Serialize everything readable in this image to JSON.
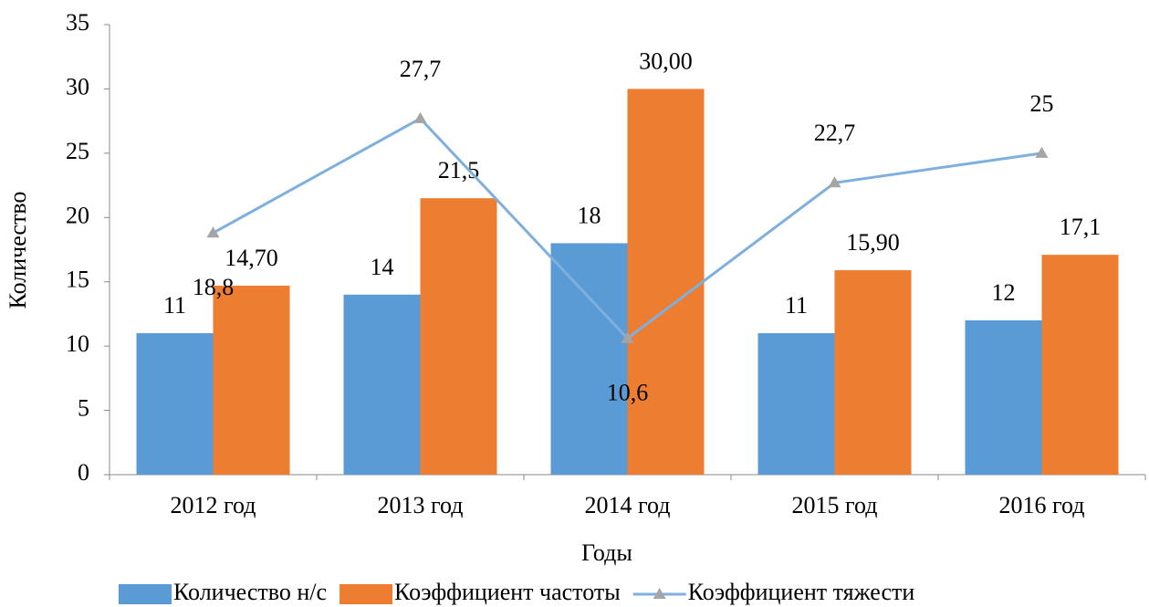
{
  "chart_data": {
    "type": "bar",
    "x_label": "Годы",
    "y_label": "Количество",
    "categories": [
      "2012 год",
      "2013 год",
      "2014 год",
      "2015 год",
      "2016 год"
    ],
    "series": [
      {
        "name": "Количество н/с",
        "type": "bar",
        "color": "#5b9bd5",
        "values": [
          11,
          14,
          18,
          11,
          12
        ]
      },
      {
        "name": "Коэффициент частоты",
        "type": "bar",
        "color": "#ed7d31",
        "values": [
          14.7,
          21.5,
          30,
          15.9,
          17.1
        ],
        "value_labels": [
          "14,70",
          "21,5",
          "30,00",
          "15,90",
          "17,1"
        ]
      },
      {
        "name": "Коэффициент тяжести",
        "type": "line",
        "color": "#7fb0dd",
        "marker_color": "#a5a5a5",
        "values": [
          18.8,
          27.7,
          10.6,
          22.7,
          25
        ],
        "value_labels": [
          "18,8",
          "27,7",
          "10,6",
          "22,7",
          "25"
        ]
      }
    ],
    "ylim": [
      0,
      35
    ],
    "yticks": [
      0,
      5,
      10,
      15,
      20,
      25,
      30,
      35
    ],
    "legend": "bottom"
  }
}
